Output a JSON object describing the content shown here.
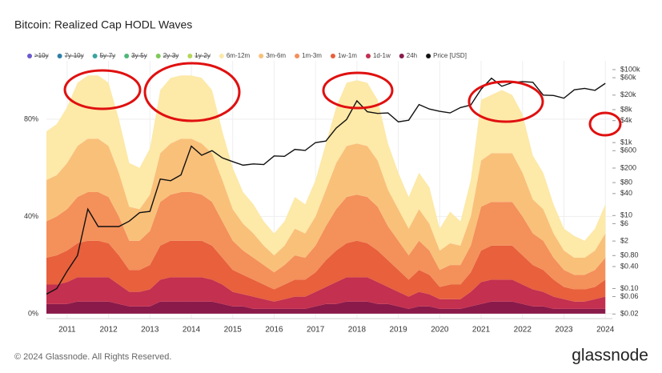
{
  "chart_data": {
    "type": "stacked_area",
    "title": "Bitcoin: Realized Cap HODL Waves",
    "footer": "© 2024 Glassnode. All Rights Reserved.",
    "brand": "glassnode",
    "legend_hidden": [
      {
        "name": ">10y",
        "color": "#6a5acd"
      },
      {
        "name": "7y-10y",
        "color": "#2e7fa8"
      },
      {
        "name": "5y-7y",
        "color": "#3aa5a0"
      },
      {
        "name": "3y-5y",
        "color": "#4db87a"
      },
      {
        "name": "2y-3y",
        "color": "#7fc95a"
      },
      {
        "name": "1y-2y",
        "color": "#b7d65a"
      }
    ],
    "x": [
      2010.5,
      2010.75,
      2011,
      2011.25,
      2011.5,
      2011.75,
      2012,
      2012.25,
      2012.5,
      2012.75,
      2013,
      2013.25,
      2013.5,
      2013.75,
      2014,
      2014.25,
      2014.5,
      2014.75,
      2015,
      2015.25,
      2015.5,
      2015.75,
      2016,
      2016.25,
      2016.5,
      2016.75,
      2017,
      2017.25,
      2017.5,
      2017.75,
      2018,
      2018.25,
      2018.5,
      2018.75,
      2019,
      2019.25,
      2019.5,
      2019.75,
      2020,
      2020.25,
      2020.5,
      2020.75,
      2021,
      2021.25,
      2021.5,
      2021.75,
      2022,
      2022.25,
      2022.5,
      2022.75,
      2023,
      2023.25,
      2023.5,
      2023.75,
      2024
    ],
    "series": [
      {
        "name": "6m-12m",
        "color": "#fde9a8",
        "values": [
          20,
          21,
          23,
          26,
          26,
          26,
          26,
          22,
          18,
          17,
          19,
          26,
          27,
          26,
          26,
          27,
          26,
          20,
          17,
          13,
          12,
          10,
          9,
          10,
          13,
          12,
          15,
          19,
          23,
          26,
          26,
          26,
          25,
          19,
          15,
          13,
          15,
          15,
          9,
          13,
          10,
          15,
          25,
          24,
          26,
          24,
          24,
          18,
          15,
          12,
          9,
          9,
          7,
          9,
          12
        ]
      },
      {
        "name": "3m-6m",
        "color": "#f9c07a",
        "values": [
          17,
          17,
          19,
          21,
          22,
          22,
          21,
          18,
          14,
          13,
          15,
          20,
          21,
          22,
          22,
          21,
          20,
          17,
          13,
          11,
          10,
          8,
          7,
          8,
          11,
          10,
          12,
          15,
          19,
          21,
          21,
          21,
          19,
          15,
          13,
          11,
          13,
          11,
          8,
          9,
          8,
          12,
          19,
          20,
          20,
          20,
          18,
          14,
          13,
          10,
          8,
          7,
          7,
          8,
          10
        ]
      },
      {
        "name": "1m-3m",
        "color": "#f4905a",
        "values": [
          15,
          16,
          17,
          19,
          20,
          20,
          19,
          16,
          12,
          12,
          14,
          18,
          19,
          20,
          20,
          19,
          18,
          15,
          12,
          10,
          9,
          8,
          7,
          8,
          10,
          9,
          11,
          14,
          17,
          19,
          19,
          19,
          18,
          14,
          12,
          10,
          12,
          10,
          7,
          8,
          8,
          11,
          18,
          18,
          18,
          18,
          16,
          13,
          12,
          9,
          7,
          6,
          6,
          7,
          9
        ]
      },
      {
        "name": "1w-1m",
        "color": "#e8603c",
        "values": [
          11,
          12,
          13,
          14,
          15,
          15,
          14,
          12,
          9,
          9,
          10,
          14,
          15,
          15,
          15,
          15,
          14,
          11,
          9,
          8,
          7,
          6,
          5,
          6,
          7,
          7,
          8,
          11,
          13,
          14,
          15,
          14,
          13,
          11,
          9,
          7,
          9,
          8,
          5,
          6,
          6,
          8,
          13,
          14,
          14,
          14,
          12,
          10,
          9,
          7,
          5,
          5,
          5,
          5,
          7
        ]
      },
      {
        "name": "1d-1w",
        "color": "#c4304f",
        "values": [
          8,
          8,
          9,
          10,
          10,
          10,
          10,
          8,
          6,
          6,
          7,
          9,
          10,
          10,
          10,
          10,
          9,
          8,
          6,
          5,
          5,
          4,
          3,
          4,
          5,
          5,
          6,
          7,
          9,
          10,
          10,
          10,
          9,
          7,
          6,
          5,
          6,
          5,
          4,
          4,
          4,
          6,
          9,
          9,
          9,
          9,
          8,
          7,
          6,
          5,
          4,
          3,
          3,
          4,
          5
        ]
      },
      {
        "name": "24h",
        "color": "#8a1a4a",
        "values": [
          4,
          4,
          4,
          5,
          5,
          5,
          5,
          4,
          3,
          3,
          3,
          5,
          5,
          5,
          5,
          5,
          5,
          4,
          3,
          3,
          2,
          2,
          2,
          2,
          2,
          2,
          3,
          4,
          4,
          5,
          5,
          5,
          4,
          4,
          3,
          2,
          3,
          3,
          2,
          2,
          2,
          3,
          4,
          5,
          5,
          5,
          4,
          3,
          3,
          2,
          2,
          2,
          2,
          2,
          2
        ]
      },
      {
        "name": "Price [USD]",
        "color": "#111111",
        "axis": "y2",
        "values": [
          0.07,
          0.1,
          0.3,
          0.8,
          15,
          5,
          5,
          5,
          7,
          12,
          13,
          100,
          90,
          130,
          800,
          450,
          600,
          380,
          300,
          240,
          260,
          250,
          430,
          420,
          650,
          610,
          1000,
          1100,
          2500,
          4300,
          14000,
          7000,
          6300,
          6500,
          3700,
          4100,
          11000,
          8300,
          7200,
          6500,
          9100,
          10700,
          29000,
          58000,
          35000,
          44000,
          47000,
          45000,
          20000,
          19500,
          16500,
          28000,
          30500,
          27000,
          42000
        ]
      }
    ],
    "xlim": [
      2010.5,
      2024.17
    ],
    "xticks": [
      2011,
      2012,
      2013,
      2014,
      2015,
      2016,
      2017,
      2018,
      2019,
      2020,
      2021,
      2022,
      2023,
      2024
    ],
    "ylim": [
      -2,
      104
    ],
    "yticks": [
      {
        "value": 0,
        "label": "0%"
      },
      {
        "value": 40,
        "label": "40%"
      },
      {
        "value": 80,
        "label": "80%"
      }
    ],
    "y2lim": [
      0.015,
      174000
    ],
    "y2log": true,
    "y2ticks": [
      {
        "value": 100000,
        "label": "$100k"
      },
      {
        "value": 60000,
        "label": "$60k"
      },
      {
        "value": 20000,
        "label": "$20k"
      },
      {
        "value": 8000,
        "label": "$8k"
      },
      {
        "value": 4000,
        "label": "$4k"
      },
      {
        "value": 1000,
        "label": "$1k"
      },
      {
        "value": 600,
        "label": "$600"
      },
      {
        "value": 200,
        "label": "$200"
      },
      {
        "value": 80,
        "label": "$80"
      },
      {
        "value": 40,
        "label": "$40"
      },
      {
        "value": 10,
        "label": "$10"
      },
      {
        "value": 6,
        "label": "$6"
      },
      {
        "value": 2,
        "label": "$2"
      },
      {
        "value": 0.8,
        "label": "$0.80"
      },
      {
        "value": 0.4,
        "label": "$0.40"
      },
      {
        "value": 0.1,
        "label": "$0.10"
      },
      {
        "value": 0.06,
        "label": "$0.06"
      },
      {
        "value": 0.02,
        "label": "$0.02"
      }
    ],
    "grid": true
  }
}
